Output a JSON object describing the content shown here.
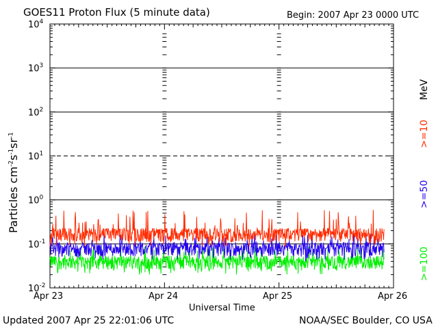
{
  "header": {
    "title": "GOES11 Proton Flux (5 minute data)",
    "begin": "Begin: 2007 Apr 23 0000 UTC"
  },
  "footer": {
    "updated": "Updated 2007 Apr 25 22:01:06 UTC",
    "credit": "NOAA/SEC Boulder, CO USA"
  },
  "colors": {
    "e10": "#ff2a00",
    "e50": "#2200ee",
    "e100": "#00ee00",
    "axes": "#000000"
  },
  "chart_data": {
    "type": "line",
    "y_scale": "log",
    "ylim": [
      0.01,
      10000
    ],
    "ylabel": "Particles cm-2s-1sr-1",
    "xlabel": "Universal Time",
    "x_ticks": [
      "Apr 23",
      "Apr 24",
      "Apr 25",
      "Apr 26"
    ],
    "xlim": [
      "2007-04-23",
      "2007-04-26"
    ],
    "y_ticks": [
      "10-2",
      "10-1",
      "100",
      "101",
      "102",
      "103",
      "104"
    ],
    "energy_unit": "MeV",
    "reference_lines": [
      {
        "value": 1000,
        "style": "solid"
      },
      {
        "value": 100,
        "style": "solid"
      },
      {
        "value": 10,
        "style": "dashed"
      },
      {
        "value": 1,
        "style": "solid"
      },
      {
        "value": 0.1,
        "style": "solid"
      }
    ],
    "series": [
      {
        "name": ">=10",
        "color": "#ff2a00",
        "baseline": 0.17,
        "peak": 0.6,
        "x": [
          "2007-04-23T00:00",
          "2007-04-23T12:00",
          "2007-04-24T00:00",
          "2007-04-24T12:00",
          "2007-04-25T00:00",
          "2007-04-25T12:00",
          "2007-04-25T22:00"
        ],
        "values": [
          0.17,
          0.16,
          0.17,
          0.18,
          0.17,
          0.16,
          0.17
        ]
      },
      {
        "name": ">=50",
        "color": "#2200ee",
        "baseline": 0.08,
        "peak": 0.17,
        "x": [
          "2007-04-23T00:00",
          "2007-04-23T12:00",
          "2007-04-24T00:00",
          "2007-04-24T12:00",
          "2007-04-25T00:00",
          "2007-04-25T12:00",
          "2007-04-25T22:00"
        ],
        "values": [
          0.08,
          0.08,
          0.08,
          0.09,
          0.08,
          0.08,
          0.08
        ]
      },
      {
        "name": ">=100",
        "color": "#00ee00",
        "baseline": 0.04,
        "peak": 0.09,
        "x": [
          "2007-04-23T00:00",
          "2007-04-23T12:00",
          "2007-04-24T00:00",
          "2007-04-24T12:00",
          "2007-04-25T00:00",
          "2007-04-25T12:00",
          "2007-04-25T22:00"
        ],
        "values": [
          0.04,
          0.04,
          0.04,
          0.04,
          0.04,
          0.04,
          0.04
        ]
      }
    ],
    "data_end": "2007-04-25T22:00"
  }
}
